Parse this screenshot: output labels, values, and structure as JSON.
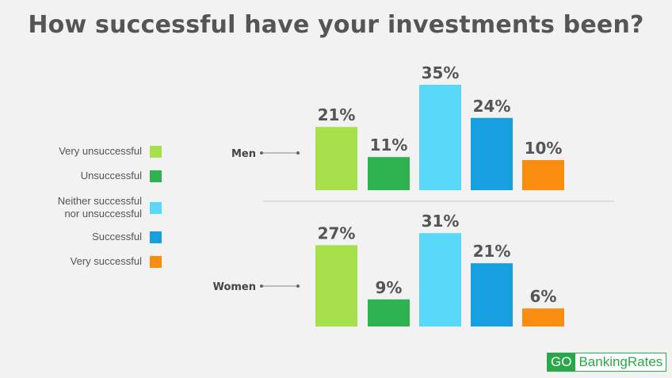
{
  "chart_data": {
    "type": "bar",
    "title": "How successful have your investments been?",
    "categories": [
      "Men",
      "Women"
    ],
    "series": [
      {
        "name": "Very unsuccessful",
        "color": "#a6e04a",
        "values": [
          21,
          27
        ]
      },
      {
        "name": "Unsuccessful",
        "color": "#2db34f",
        "values": [
          11,
          9
        ]
      },
      {
        "name": "Neither successful\nnor unsuccessful",
        "color": "#5ad8fa",
        "values": [
          35,
          31
        ]
      },
      {
        "name": "Successful",
        "color": "#189fdf",
        "values": [
          24,
          21
        ]
      },
      {
        "name": "Very successful",
        "color": "#f98d10",
        "values": [
          10,
          6
        ]
      }
    ],
    "value_suffix": "%",
    "legend_position": "left",
    "grid": false
  },
  "branding": {
    "logo_go": "GO",
    "logo_rest": "BankingRates",
    "logo_color": "#29a84a"
  }
}
